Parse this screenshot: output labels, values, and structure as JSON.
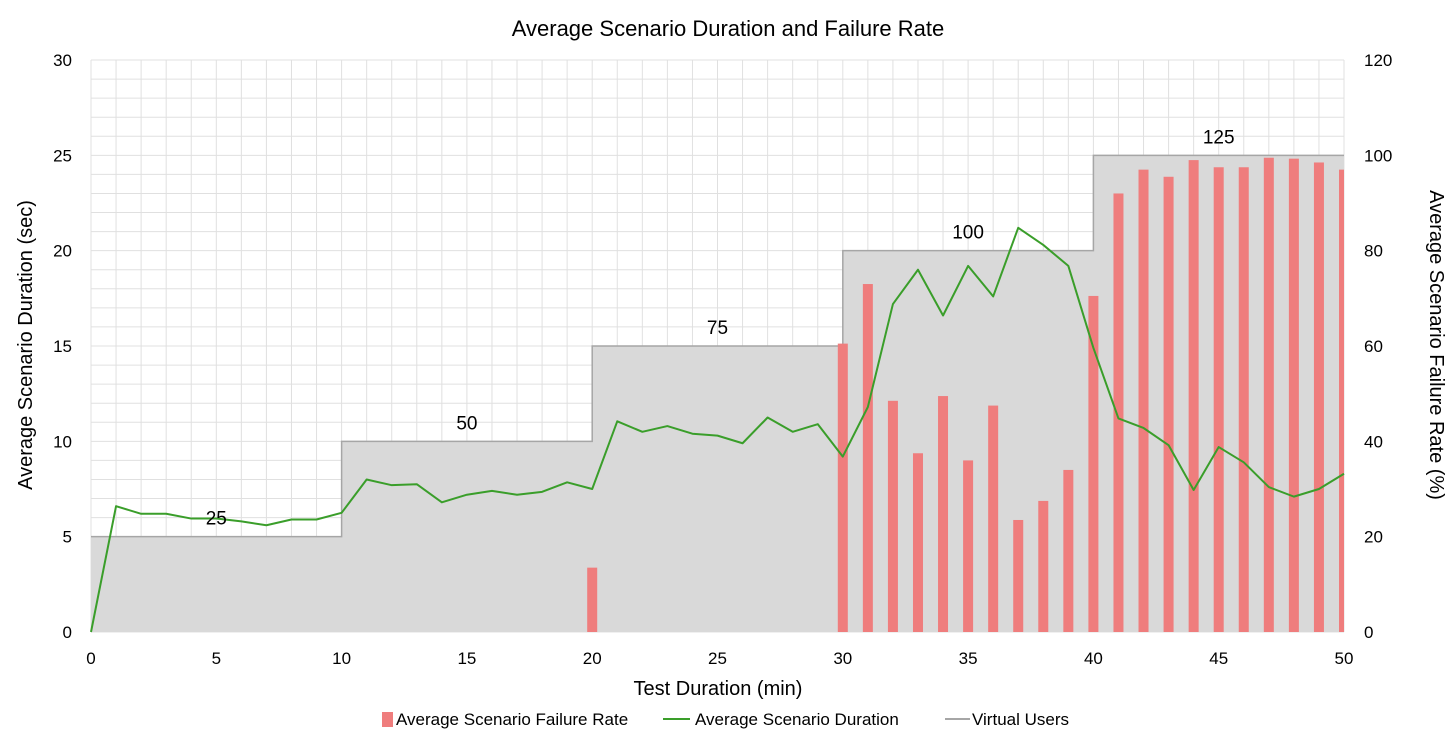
{
  "chart_data": {
    "type": "bar",
    "title": "Average Scenario Duration and Failure Rate",
    "xlabel": "Test Duration (min)",
    "ylabel": "Average Scenario Duration (sec)",
    "y2label": "Average Scenario Failure Rate (%)",
    "xlim": [
      0,
      50
    ],
    "ylim": [
      0,
      30
    ],
    "y2lim": [
      0,
      120
    ],
    "xticks": [
      0,
      5,
      10,
      15,
      20,
      25,
      30,
      35,
      40,
      45,
      50
    ],
    "yticks": [
      0,
      5,
      10,
      15,
      20,
      25,
      30
    ],
    "y2ticks": [
      0,
      20,
      40,
      60,
      80,
      100,
      120
    ],
    "grid": true,
    "legend_position": "bottom",
    "series": [
      {
        "name": "Average Scenario Failure Rate",
        "type": "bar",
        "axis": "right",
        "color": "#ef7d7d",
        "x": [
          20,
          30,
          31,
          32,
          33,
          34,
          35,
          36,
          37,
          38,
          39,
          40,
          41,
          42,
          43,
          44,
          45,
          46,
          47,
          48,
          49,
          50
        ],
        "values": [
          13.5,
          60.5,
          73,
          48.5,
          37.5,
          49.5,
          36,
          47.5,
          23.5,
          27.5,
          34,
          70.5,
          92,
          97,
          95.5,
          99,
          97.5,
          97.5,
          99.5,
          99.3,
          98.5,
          97
        ]
      },
      {
        "name": "Average Scenario Duration",
        "type": "line",
        "axis": "left",
        "color": "#3a9e2a",
        "x": [
          0,
          1,
          2,
          3,
          4,
          5,
          6,
          7,
          8,
          9,
          10,
          11,
          12,
          13,
          14,
          15,
          16,
          17,
          18,
          19,
          20,
          21,
          22,
          23,
          24,
          25,
          26,
          27,
          28,
          29,
          30,
          31,
          32,
          33,
          34,
          35,
          36,
          37,
          38,
          39,
          40,
          41,
          42,
          43,
          44,
          45,
          46,
          47,
          48,
          49,
          50
        ],
        "values": [
          0,
          6.6,
          6.2,
          6.2,
          5.95,
          5.95,
          5.8,
          5.6,
          5.9,
          5.9,
          6.25,
          8.0,
          7.7,
          7.75,
          6.8,
          7.2,
          7.4,
          7.2,
          7.35,
          7.85,
          7.5,
          11.05,
          10.5,
          10.8,
          10.4,
          10.3,
          9.9,
          11.25,
          10.5,
          10.9,
          9.2,
          11.8,
          17.2,
          19.0,
          16.6,
          19.2,
          17.6,
          21.2,
          20.3,
          19.2,
          14.9,
          11.2,
          10.7,
          9.8,
          7.45,
          9.7,
          8.9,
          7.6,
          7.1,
          7.5,
          8.3
        ]
      },
      {
        "name": "Virtual Users",
        "type": "area-step",
        "axis": "left",
        "color": "#a6a6a6",
        "fill": "#d9d9d9",
        "steps": [
          {
            "x_start": 0,
            "x_end": 10,
            "value": 5,
            "label": "25"
          },
          {
            "x_start": 10,
            "x_end": 20,
            "value": 10,
            "label": "50"
          },
          {
            "x_start": 20,
            "x_end": 30,
            "value": 15,
            "label": "75"
          },
          {
            "x_start": 30,
            "x_end": 40,
            "value": 20,
            "label": "100"
          },
          {
            "x_start": 40,
            "x_end": 50,
            "value": 25,
            "label": "125"
          }
        ]
      }
    ]
  }
}
